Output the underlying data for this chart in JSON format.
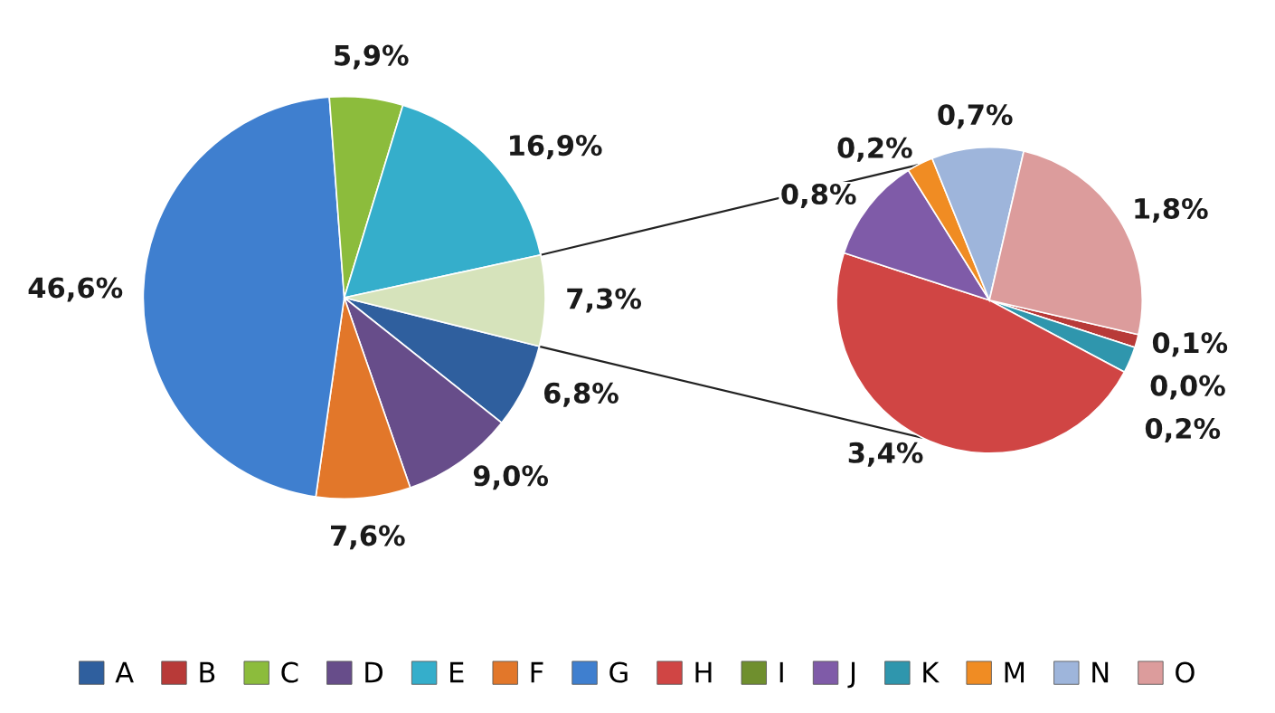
{
  "chart_data": [
    {
      "type": "pie",
      "categories": [
        "A",
        "D",
        "F",
        "G",
        "C",
        "E",
        null
      ],
      "values": [
        6.8,
        9.0,
        7.6,
        46.6,
        5.9,
        16.9,
        7.3
      ],
      "colors": [
        "#2f5f9e",
        "#674d8a",
        "#e2772a",
        "#3f7fcf",
        "#8cbc3c",
        "#35aecb",
        "#d6e3bb"
      ],
      "value_labels": [
        "6,8%",
        "9,0%",
        "7,6%",
        "46,6%",
        "5,9%",
        "16,9%",
        "7,3%"
      ],
      "legend": "bottom"
    },
    {
      "type": "pie",
      "categories": [
        "B",
        "I",
        "K",
        "H",
        "J",
        "M",
        "N",
        "O"
      ],
      "values": [
        0.1,
        0.0,
        0.2,
        3.4,
        0.8,
        0.2,
        0.7,
        1.8
      ],
      "colors": [
        "#b83a38",
        "#6f8f2e",
        "#2f96ad",
        "#d04544",
        "#7f5ba8",
        "#f08c23",
        "#9eb5db",
        "#dc9c9c"
      ],
      "value_labels": [
        "0,1%",
        "0,0%",
        "0,2%",
        "3,4%",
        "0,8%",
        "0,2%",
        "0,7%",
        "1,8%"
      ],
      "legend": "bottom"
    }
  ]
}
